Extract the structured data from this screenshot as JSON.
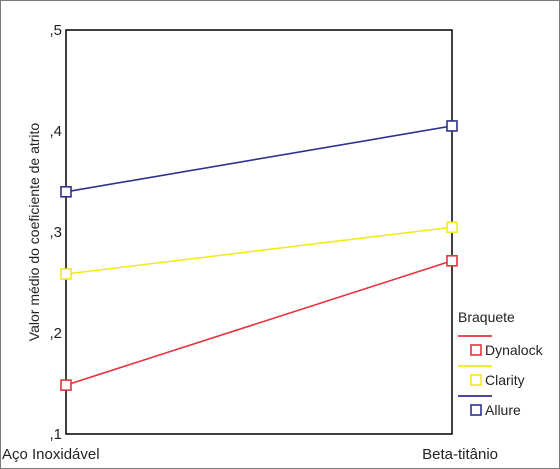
{
  "chart_data": {
    "type": "line",
    "categories": [
      "Aço Inoxidável",
      "Beta-titânio"
    ],
    "series": [
      {
        "name": "Dynalock",
        "color": "#e5323e",
        "values": [
          0.1484,
          0.2715
        ]
      },
      {
        "name": "Clarity",
        "color": "#f2ea1c",
        "values": [
          0.2584,
          0.3047
        ]
      },
      {
        "name": "Allure",
        "color": "#2f3190",
        "values": [
          0.3398,
          0.405
        ]
      }
    ],
    "ylabel": "Valor médio do coeficiente de atrito",
    "ylim": [
      0.1,
      0.5
    ],
    "yticks": [
      0.1,
      0.2,
      0.3,
      0.4,
      0.5
    ],
    "ytick_labels": [
      ",1",
      ",2",
      ",3",
      ",4",
      ",5"
    ],
    "legend": {
      "title": "Braquete",
      "placement": "right"
    },
    "grid": false,
    "marker": "hollow-square"
  }
}
